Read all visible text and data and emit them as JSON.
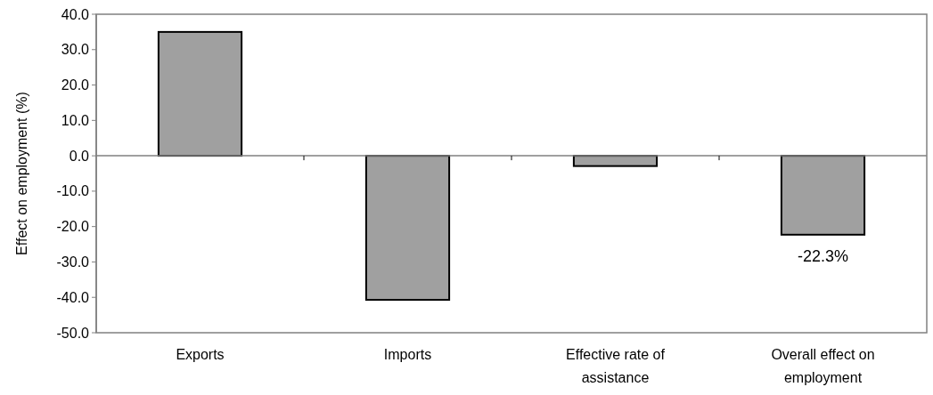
{
  "chart_data": {
    "type": "bar",
    "ylabel": "Effect on employment (%)",
    "categories": [
      "Exports",
      "Imports",
      "Effective rate of assistance",
      "Overall effect on employment"
    ],
    "values": [
      35.0,
      -40.7,
      -2.9,
      -22.3
    ],
    "value_labels": [
      null,
      null,
      null,
      "-22.3%"
    ],
    "color": "#a0a0a0",
    "ylim": [
      -50,
      40
    ],
    "yticks": [
      {
        "value": 40,
        "label": "40.0"
      },
      {
        "value": 30,
        "label": "30.0"
      },
      {
        "value": 20,
        "label": "20.0"
      },
      {
        "value": 10,
        "label": "10.0"
      },
      {
        "value": 0,
        "label": "0.0"
      },
      {
        "value": -10,
        "label": "-10.0"
      },
      {
        "value": -20,
        "label": "-20.0"
      },
      {
        "value": -30,
        "label": "-30.0"
      },
      {
        "value": -40,
        "label": "-40.0"
      },
      {
        "value": -50,
        "label": "-50.0"
      }
    ]
  }
}
